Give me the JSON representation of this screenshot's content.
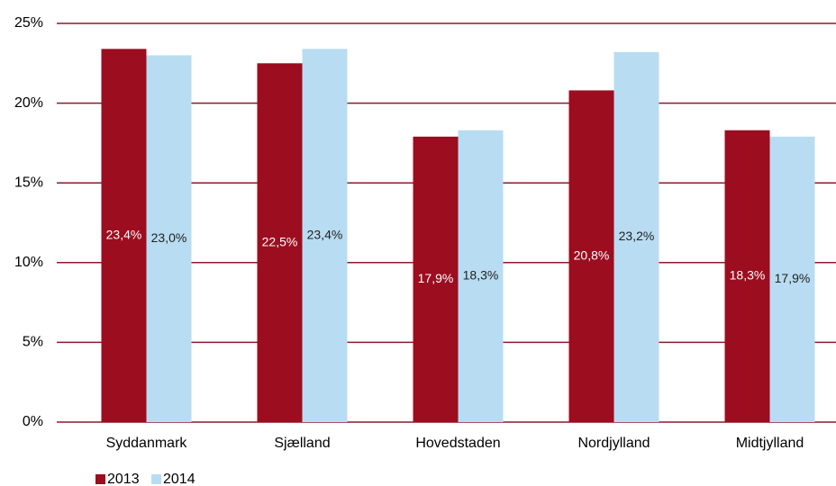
{
  "chart_data": {
    "type": "bar",
    "categories": [
      "Syddanmark",
      "Sjælland",
      "Hovedstaden",
      "Nordjylland",
      "Midtjylland"
    ],
    "series": [
      {
        "name": "2013",
        "color": "#9b0d1f",
        "values": [
          23.4,
          22.5,
          17.9,
          20.8,
          18.3
        ],
        "value_labels": [
          "23,4%",
          "22,5%",
          "17,9%",
          "20,8%",
          "18,3%"
        ]
      },
      {
        "name": "2014",
        "color": "#b8dcf2",
        "values": [
          23.0,
          23.4,
          18.3,
          23.2,
          17.9
        ],
        "value_labels": [
          "23,0%",
          "23,4%",
          "18,3%",
          "23,2%",
          "17,9%"
        ]
      }
    ],
    "ylim": [
      0,
      25
    ],
    "yticks": [
      {
        "value": 0,
        "label": "0%"
      },
      {
        "value": 5,
        "label": "5%"
      },
      {
        "value": 10,
        "label": "10%"
      },
      {
        "value": 15,
        "label": "15%"
      },
      {
        "value": 20,
        "label": "20%"
      },
      {
        "value": 25,
        "label": "25%"
      }
    ],
    "grid": true,
    "legend": "bottom-left"
  }
}
